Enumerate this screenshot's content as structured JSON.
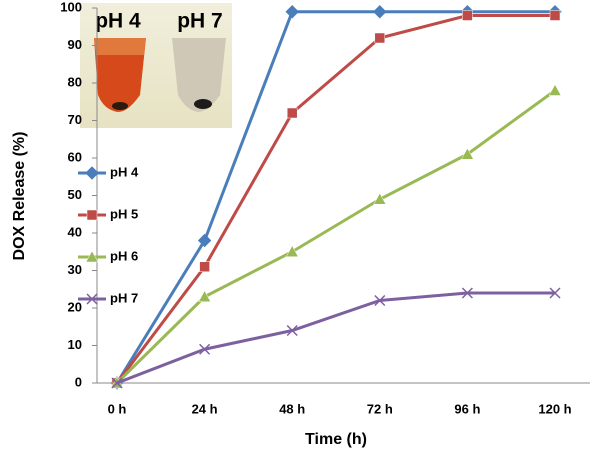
{
  "chart_data": {
    "type": "line",
    "x_label": "Time (h)",
    "y_label": "DOX Release (%)",
    "categories": [
      "0 h",
      "24 h",
      "48 h",
      "72 h",
      "96 h",
      "120 h"
    ],
    "series": [
      {
        "name": "pH 4",
        "color": "#4a7ebb",
        "marker": "diamond",
        "values": [
          0,
          38,
          99,
          99,
          99,
          99
        ]
      },
      {
        "name": "pH 5",
        "color": "#be4b48",
        "marker": "square",
        "values": [
          0,
          31,
          72,
          92,
          98,
          98
        ]
      },
      {
        "name": "pH 6",
        "color": "#98b954",
        "marker": "triangle",
        "values": [
          0,
          23,
          35,
          49,
          61,
          78
        ]
      },
      {
        "name": "pH 7",
        "color": "#7d60a0",
        "marker": "cross",
        "values": [
          0,
          9,
          14,
          22,
          24,
          24
        ]
      }
    ],
    "ylim": [
      0,
      100
    ],
    "yticks": [
      0,
      10,
      20,
      30,
      40,
      50,
      60,
      70,
      80,
      90,
      100
    ],
    "grid": false,
    "legend": "left",
    "inset_labels": [
      "pH 4",
      "pH 7"
    ]
  }
}
